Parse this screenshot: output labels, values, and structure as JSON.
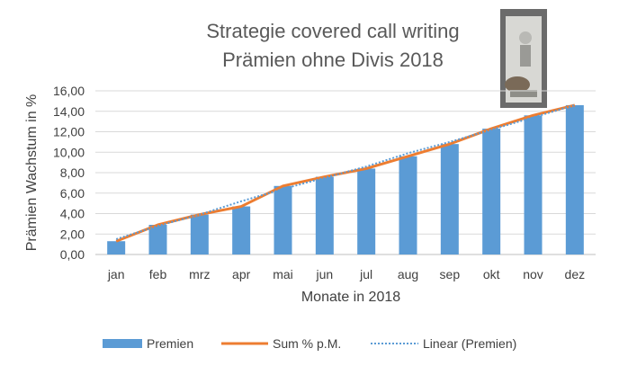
{
  "chart_data": {
    "type": "bar",
    "title_lines": [
      "Strategie covered call writing",
      "Prämien ohne Divis 2018"
    ],
    "xlabel": "Monate in 2018",
    "ylabel": "Prämien Wachstum in %",
    "categories": [
      "jan",
      "feb",
      "mrz",
      "apr",
      "mai",
      "jun",
      "jul",
      "aug",
      "sep",
      "okt",
      "nov",
      "dez"
    ],
    "ylim": [
      0,
      16
    ],
    "yticks": [
      "0,00",
      "2,00",
      "4,00",
      "6,00",
      "8,00",
      "10,00",
      "12,00",
      "14,00",
      "16,00"
    ],
    "series": [
      {
        "name": "Premien",
        "kind": "bar",
        "color": "#5B9BD5",
        "values": [
          1.3,
          2.9,
          3.9,
          4.7,
          6.7,
          7.6,
          8.4,
          9.6,
          10.8,
          12.3,
          13.6,
          14.6
        ]
      },
      {
        "name": "Sum % p.M.",
        "kind": "line",
        "color": "#ED7D31",
        "values": [
          1.3,
          2.9,
          3.9,
          4.7,
          6.7,
          7.6,
          8.4,
          9.6,
          10.8,
          12.3,
          13.6,
          14.6
        ]
      },
      {
        "name": "Linear (Premien)",
        "kind": "trendline",
        "color": "#5B9BD5",
        "values": [
          1.5,
          2.8,
          3.9,
          5.2,
          6.4,
          7.5,
          8.6,
          9.9,
          11.0,
          12.2,
          13.4,
          14.6
        ]
      }
    ],
    "grid": true,
    "legend": "bottom"
  },
  "photo": {
    "name": "child-with-dog-photo-icon"
  }
}
